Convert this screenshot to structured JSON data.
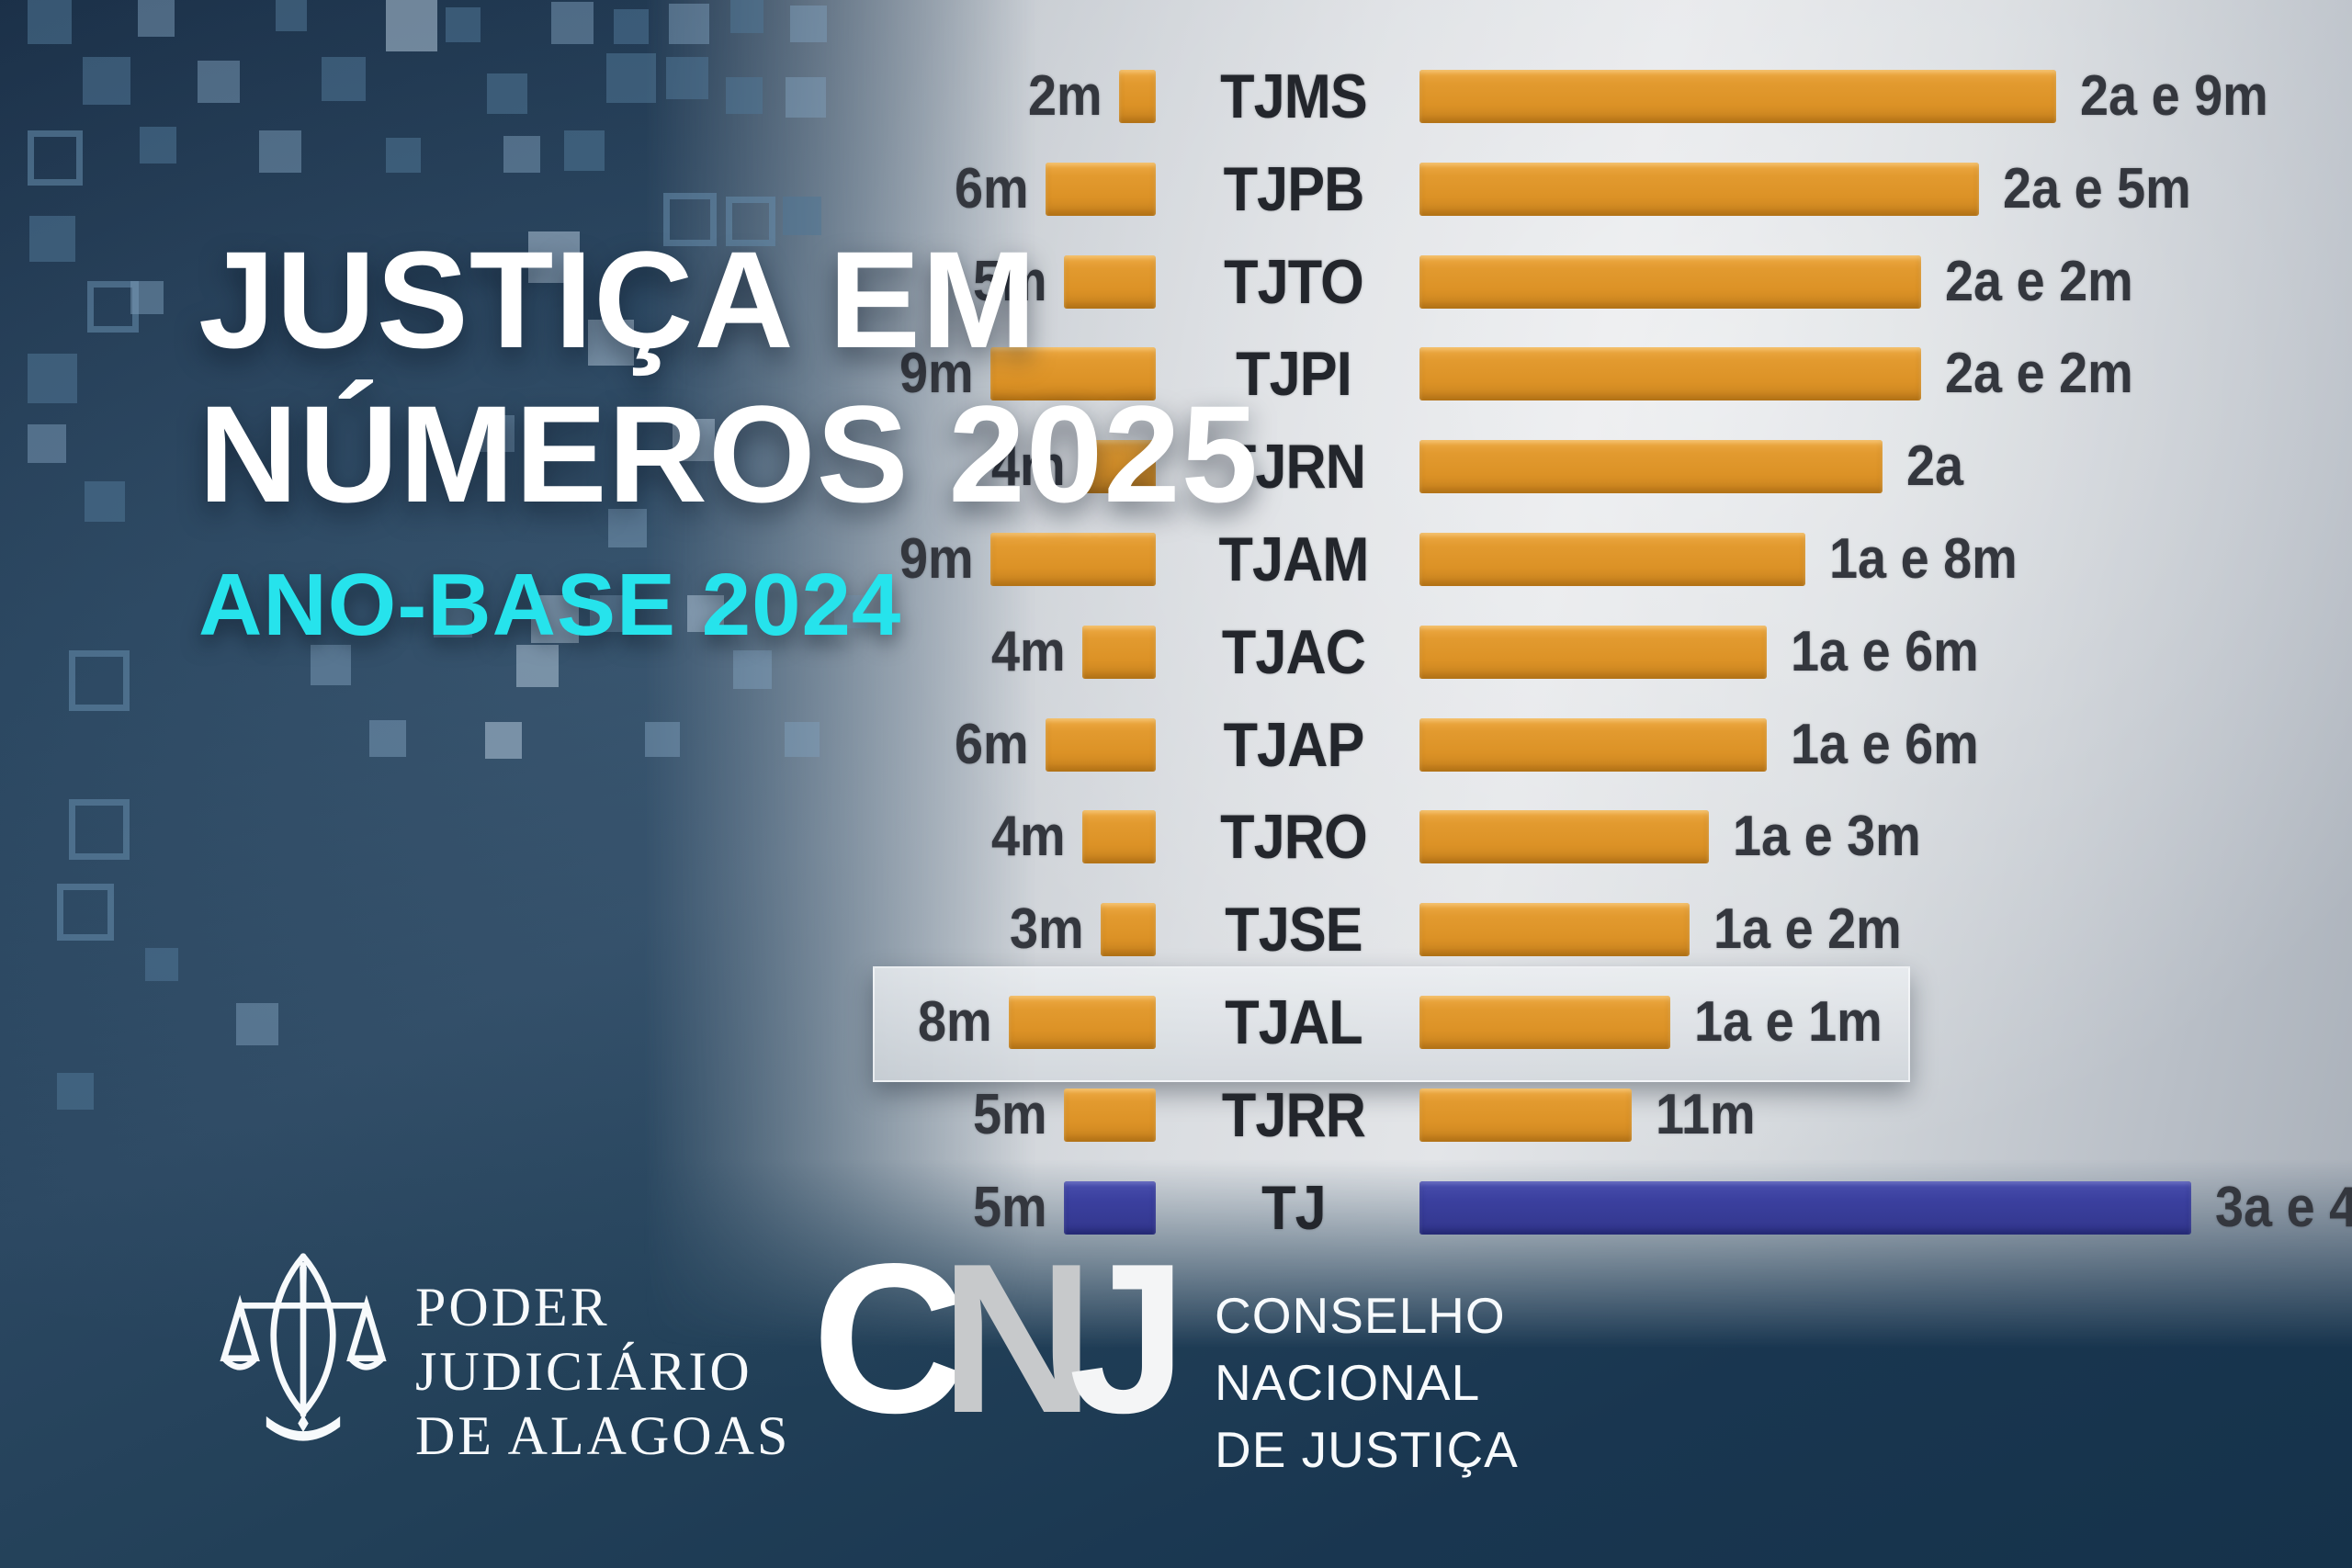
{
  "title": {
    "line1": "JUSTIÇA EM",
    "line2": "NÚMEROS 2025",
    "subtitle": "ANO-BASE 2024"
  },
  "chart_data": {
    "type": "bar",
    "orientation": "horizontal-dual",
    "left_unit": "months",
    "right_unit": "months (shown as anos/meses)",
    "rows": [
      {
        "court": "TJMS",
        "left_label": "2m",
        "left_months": 2,
        "right_label": "2a e 9m",
        "right_months": 33,
        "color": "orange",
        "highlight": false
      },
      {
        "court": "TJPB",
        "left_label": "6m",
        "left_months": 6,
        "right_label": "2a e 5m",
        "right_months": 29,
        "color": "orange",
        "highlight": false
      },
      {
        "court": "TJTO",
        "left_label": "5m",
        "left_months": 5,
        "right_label": "2a e 2m",
        "right_months": 26,
        "color": "orange",
        "highlight": false
      },
      {
        "court": "TJPI",
        "left_label": "9m",
        "left_months": 9,
        "right_label": "2a e 2m",
        "right_months": 26,
        "color": "orange",
        "highlight": false
      },
      {
        "court": "TJRN",
        "left_label": "4m",
        "left_months": 4,
        "right_label": "2a",
        "right_months": 24,
        "color": "orange",
        "highlight": false
      },
      {
        "court": "TJAM",
        "left_label": "9m",
        "left_months": 9,
        "right_label": "1a e 8m",
        "right_months": 20,
        "color": "orange",
        "highlight": false
      },
      {
        "court": "TJAC",
        "left_label": "4m",
        "left_months": 4,
        "right_label": "1a e 6m",
        "right_months": 18,
        "color": "orange",
        "highlight": false
      },
      {
        "court": "TJAP",
        "left_label": "6m",
        "left_months": 6,
        "right_label": "1a e 6m",
        "right_months": 18,
        "color": "orange",
        "highlight": false
      },
      {
        "court": "TJRO",
        "left_label": "4m",
        "left_months": 4,
        "right_label": "1a e 3m",
        "right_months": 15,
        "color": "orange",
        "highlight": false
      },
      {
        "court": "TJSE",
        "left_label": "3m",
        "left_months": 3,
        "right_label": "1a e 2m",
        "right_months": 14,
        "color": "orange",
        "highlight": false
      },
      {
        "court": "TJAL",
        "left_label": "8m",
        "left_months": 8,
        "right_label": "1a e 1m",
        "right_months": 13,
        "color": "orange",
        "highlight": true
      },
      {
        "court": "TJRR",
        "left_label": "5m",
        "left_months": 5,
        "right_label": "11m",
        "right_months": 11,
        "color": "orange",
        "highlight": false
      },
      {
        "court": "TJ",
        "left_label": "5m",
        "left_months": 5,
        "right_label": "3a e 4",
        "right_months": 40,
        "color": "blue",
        "highlight": false
      }
    ]
  },
  "footer": {
    "pjal": {
      "lines": [
        "PODER",
        "JUDICIÁRIO",
        "DE ALAGOAS"
      ]
    },
    "cnj": {
      "letters": [
        "C",
        "N",
        "J"
      ],
      "lines": [
        "CONSELHO",
        "NACIONAL",
        "DE JUSTIÇA"
      ]
    }
  },
  "colors": {
    "bar_orange": "#e0992e",
    "bar_blue": "#3b409f",
    "subtitle_cyan": "#26e3ec",
    "title_white": "#ffffff",
    "label_dark": "#24272d"
  }
}
